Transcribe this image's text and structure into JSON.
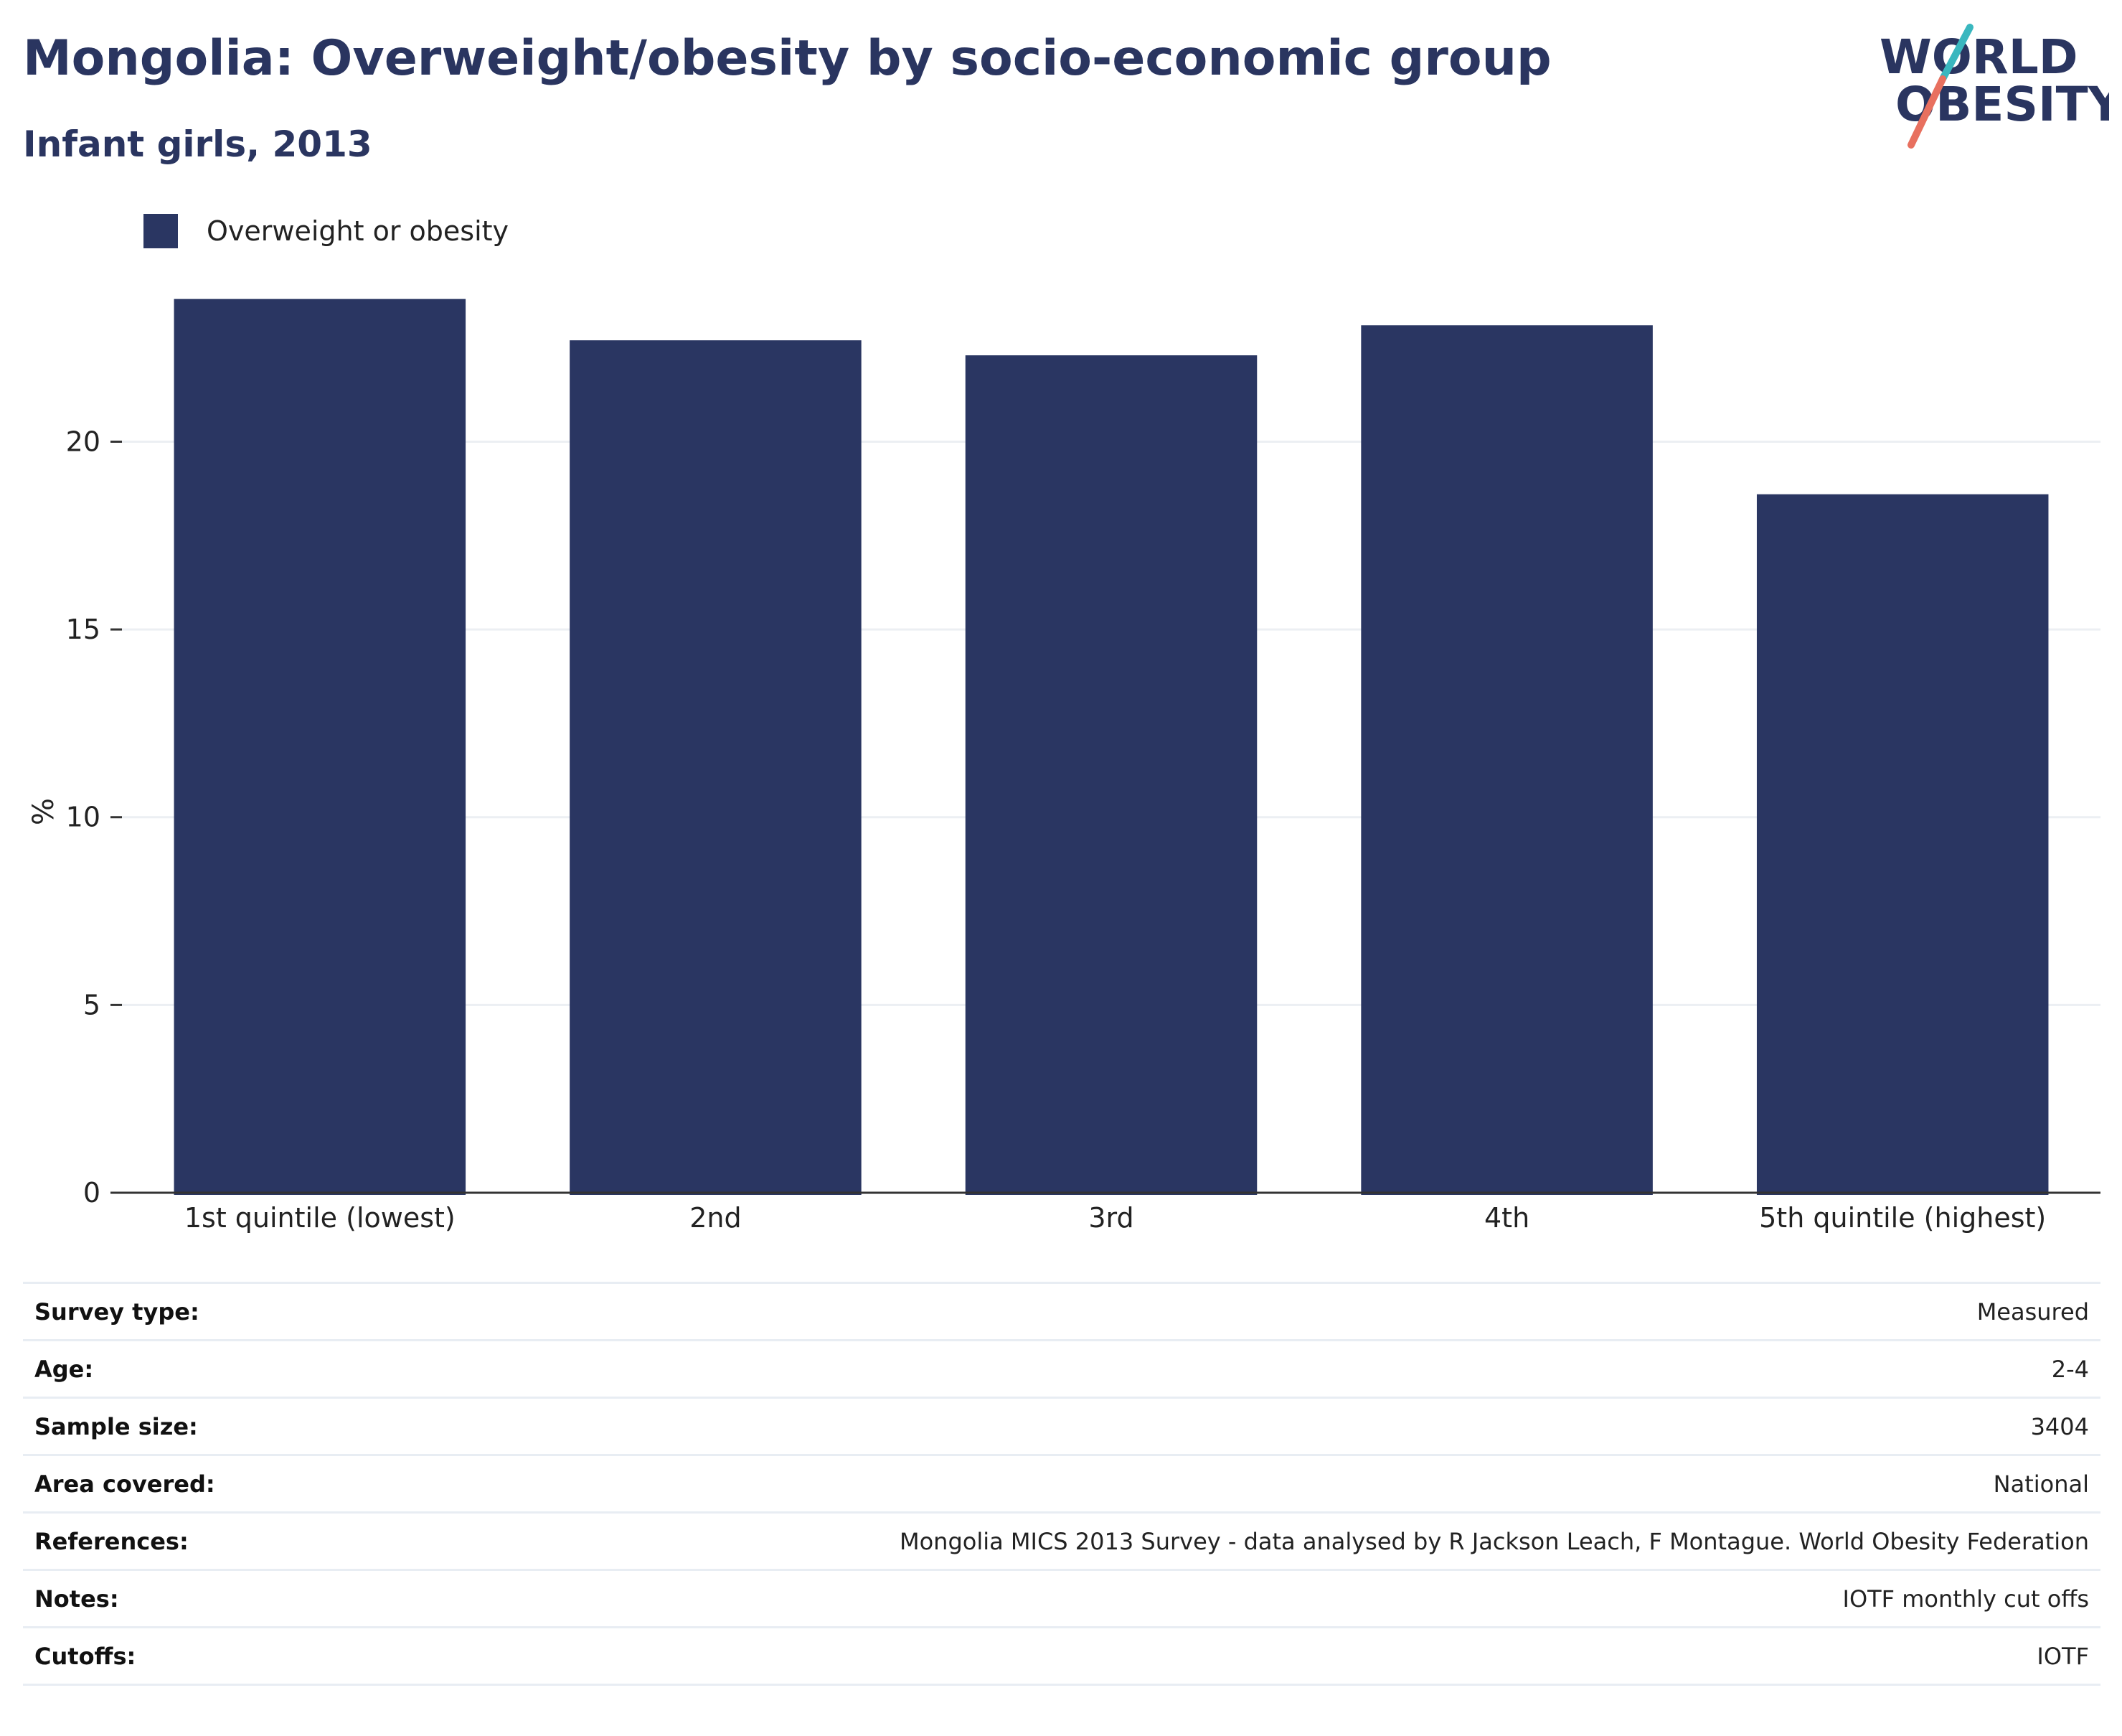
{
  "header": {
    "title": "Mongolia: Overweight/obesity by socio-economic group",
    "subtitle": "Infant girls, 2013"
  },
  "logo": {
    "line1": "WORLD",
    "line2": "OBESITY",
    "colors": {
      "text": "#2a3560",
      "accent_teal": "#3ab7bf",
      "accent_red": "#e8705f"
    }
  },
  "colors": {
    "bar": "#2a3662",
    "gridline": "#eceff3",
    "axis": "#333333",
    "text": "#2a3560"
  },
  "chart_data": {
    "type": "bar",
    "title": "Mongolia: Overweight/obesity by socio-economic group",
    "subtitle": "Infant girls, 2013",
    "categories": [
      "1st quintile (lowest)",
      "2nd",
      "3rd",
      "4th",
      "5th quintile (highest)"
    ],
    "series": [
      {
        "name": "Overweight or obesity",
        "values": [
          23.8,
          22.7,
          22.3,
          23.1,
          18.6
        ]
      }
    ],
    "xlabel": "",
    "ylabel": "%",
    "ylim": [
      0,
      24.5
    ],
    "yticks": [
      0,
      5,
      10,
      15,
      20
    ],
    "grid": true,
    "legend": "top-left"
  },
  "meta": {
    "rows": [
      {
        "key": "Survey type:",
        "value": "Measured"
      },
      {
        "key": "Age:",
        "value": "2-4"
      },
      {
        "key": "Sample size:",
        "value": "3404"
      },
      {
        "key": "Area covered:",
        "value": "National"
      },
      {
        "key": "References:",
        "value": "Mongolia MICS 2013 Survey - data analysed by R Jackson Leach, F Montague. World Obesity Federation"
      },
      {
        "key": "Notes:",
        "value": "IOTF monthly cut offs"
      },
      {
        "key": "Cutoffs:",
        "value": "IOTF"
      }
    ]
  }
}
